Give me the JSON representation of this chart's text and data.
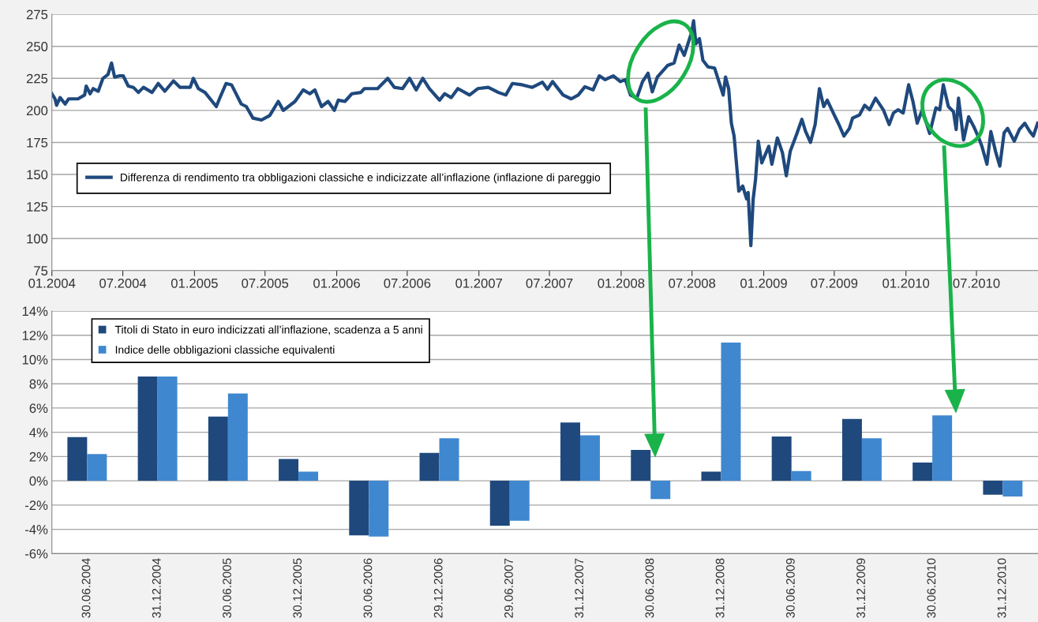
{
  "chart_data": [
    {
      "type": "line",
      "ylim": [
        75,
        275
      ],
      "yticks": [
        75,
        100,
        125,
        150,
        175,
        200,
        225,
        250,
        275
      ],
      "xlim": [
        "2004-01-01",
        "2010-12-06"
      ],
      "xticks": [
        {
          "value": "2004-01-01",
          "label": "01.2004"
        },
        {
          "value": "2004-07-01",
          "label": "07.2004"
        },
        {
          "value": "2005-01-01",
          "label": "01.2005"
        },
        {
          "value": "2005-07-01",
          "label": "07.2005"
        },
        {
          "value": "2006-01-01",
          "label": "01.2006"
        },
        {
          "value": "2006-07-01",
          "label": "07.2006"
        },
        {
          "value": "2007-01-01",
          "label": "01.2007"
        },
        {
          "value": "2007-07-01",
          "label": "07.2007"
        },
        {
          "value": "2008-01-01",
          "label": "01.2008"
        },
        {
          "value": "2008-07-01",
          "label": "07.2008"
        },
        {
          "value": "2009-01-01",
          "label": "01.2009"
        },
        {
          "value": "2009-07-01",
          "label": "07.2009"
        },
        {
          "value": "2010-01-01",
          "label": "01.2010"
        },
        {
          "value": "2010-07-01",
          "label": "07.2010"
        }
      ],
      "grid": "y",
      "legend": "left",
      "line_style": "solid",
      "marker": "none",
      "series": [
        {
          "name": "Differenza di rendimento tra obbligazioni classiche e indicizzate all’inflazione (inflazione di pareggio",
          "color": "#1f497d",
          "x": [
            "2004-01-01",
            "2004-01-09",
            "2004-01-13",
            "2004-01-22",
            "2004-02-04",
            "2004-02-13",
            "2004-03-08",
            "2004-03-25",
            "2004-03-29",
            "2004-04-08",
            "2004-04-16",
            "2004-04-29",
            "2004-05-11",
            "2004-05-24",
            "2004-06-02",
            "2004-06-10",
            "2004-06-23",
            "2004-07-02",
            "2004-07-15",
            "2004-07-28",
            "2004-08-10",
            "2004-08-23",
            "2004-09-14",
            "2004-09-30",
            "2004-10-17",
            "2004-11-08",
            "2004-11-25",
            "2004-12-21",
            "2004-12-29",
            "2005-01-11",
            "2005-01-28",
            "2005-02-26",
            "2005-03-06",
            "2005-03-23",
            "2005-04-06",
            "2005-05-01",
            "2005-05-14",
            "2005-05-31",
            "2005-06-22",
            "2005-07-13",
            "2005-08-04",
            "2005-08-17",
            "2005-09-16",
            "2005-10-07",
            "2005-10-24",
            "2005-11-06",
            "2005-11-23",
            "2005-12-10",
            "2005-12-26",
            "2006-01-05",
            "2006-01-22",
            "2006-02-09",
            "2006-03-04",
            "2006-03-13",
            "2006-04-16",
            "2006-05-12",
            "2006-05-29",
            "2006-06-19",
            "2006-07-07",
            "2006-07-24",
            "2006-08-10",
            "2006-08-27",
            "2006-09-22",
            "2006-10-05",
            "2006-10-22",
            "2006-11-08",
            "2006-12-08",
            "2006-12-29",
            "2007-01-25",
            "2007-02-20",
            "2007-03-11",
            "2007-03-28",
            "2007-04-22",
            "2007-05-18",
            "2007-06-13",
            "2007-06-26",
            "2007-07-09",
            "2007-08-05",
            "2007-08-26",
            "2007-09-13",
            "2007-09-30",
            "2007-10-21",
            "2007-11-06",
            "2007-11-21",
            "2007-12-12",
            "2007-12-30",
            "2008-01-12",
            "2008-01-25",
            "2008-02-10",
            "2008-02-25",
            "2008-03-10",
            "2008-03-21",
            "2008-04-03",
            "2008-04-29",
            "2008-05-16",
            "2008-05-29",
            "2008-06-11",
            "2008-06-22",
            "2008-06-30",
            "2008-07-05",
            "2008-07-11",
            "2008-07-20",
            "2008-07-29",
            "2008-08-11",
            "2008-08-28",
            "2008-09-08",
            "2008-09-19",
            "2008-09-25",
            "2008-10-03",
            "2008-10-10",
            "2008-10-17",
            "2008-10-23",
            "2008-10-29",
            "2008-11-08",
            "2008-11-18",
            "2008-11-22",
            "2008-11-29",
            "2008-12-05",
            "2008-12-11",
            "2008-12-18",
            "2008-12-27",
            "2009-01-14",
            "2009-01-22",
            "2009-02-05",
            "2009-02-18",
            "2009-02-28",
            "2009-03-10",
            "2009-03-26",
            "2009-04-09",
            "2009-04-18",
            "2009-05-01",
            "2009-05-13",
            "2009-05-24",
            "2009-06-04",
            "2009-06-13",
            "2009-07-01",
            "2009-07-13",
            "2009-07-26",
            "2009-08-09",
            "2009-08-17",
            "2009-09-04",
            "2009-09-17",
            "2009-09-30",
            "2009-10-15",
            "2009-11-04",
            "2009-11-19",
            "2009-11-30",
            "2009-12-12",
            "2009-12-25",
            "2010-01-08",
            "2010-01-19",
            "2010-01-30",
            "2010-02-12",
            "2010-03-03",
            "2010-03-19",
            "2010-03-29",
            "2010-04-07",
            "2010-04-20",
            "2010-05-03",
            "2010-05-10",
            "2010-05-16",
            "2010-05-29",
            "2010-06-11",
            "2010-06-24",
            "2010-07-07",
            "2010-07-15",
            "2010-07-28",
            "2010-08-07",
            "2010-08-19",
            "2010-08-30",
            "2010-09-10",
            "2010-09-19",
            "2010-10-06",
            "2010-10-19",
            "2010-11-02",
            "2010-11-15",
            "2010-11-24",
            "2010-12-05"
          ],
          "values": [
            213,
            209,
            204,
            210,
            205,
            209,
            209,
            212,
            219,
            213,
            217,
            215,
            225,
            228,
            237,
            226,
            227,
            227,
            219,
            218,
            214,
            218,
            214,
            221,
            215,
            223,
            218,
            218,
            225,
            217,
            214,
            203,
            209,
            221,
            220,
            205,
            203,
            194,
            192.5,
            196,
            207,
            200,
            207,
            216,
            213,
            216,
            203,
            207,
            200,
            208,
            207,
            213,
            214,
            217,
            217,
            225,
            218,
            217,
            225,
            216,
            225,
            217,
            208,
            213,
            210,
            217,
            212,
            217,
            218,
            214,
            212,
            221,
            220,
            218,
            222,
            216.5,
            222.5,
            212,
            209,
            212,
            218.5,
            216,
            227,
            224,
            227,
            222.5,
            224,
            212,
            209.5,
            222.5,
            229,
            214.5,
            226,
            235,
            237,
            251,
            243,
            253.5,
            261,
            270,
            252,
            256,
            239,
            234,
            233,
            222.5,
            212,
            226,
            217,
            190,
            180,
            159,
            137,
            141,
            131,
            136,
            94.5,
            131,
            146,
            176,
            159,
            172,
            158,
            178.5,
            167,
            149,
            168,
            181,
            193,
            184,
            175,
            189,
            217,
            203,
            208,
            196.5,
            189,
            180,
            186,
            194,
            196.5,
            204,
            200.5,
            209.5,
            200.5,
            189,
            198,
            200.5,
            198,
            220,
            207,
            190,
            200.5,
            182,
            202,
            200.5,
            220,
            203,
            199,
            185,
            209.5,
            177,
            195,
            187.5,
            178.5,
            172,
            158,
            183.5,
            168,
            156.5,
            182.5,
            186,
            176,
            185,
            190,
            183.5,
            180,
            190
          ]
        }
      ]
    },
    {
      "type": "bar",
      "ylim": [
        -6,
        14
      ],
      "yticks": [
        {
          "value": -6,
          "label": "-6%"
        },
        {
          "value": -4,
          "label": "-4%"
        },
        {
          "value": -2,
          "label": "-2%"
        },
        {
          "value": 0,
          "label": "0%"
        },
        {
          "value": 2,
          "label": "2%"
        },
        {
          "value": 4,
          "label": "4%"
        },
        {
          "value": 6,
          "label": "6%"
        },
        {
          "value": 8,
          "label": "8%"
        },
        {
          "value": 10,
          "label": "10%"
        },
        {
          "value": 12,
          "label": "12%"
        },
        {
          "value": 14,
          "label": "14%"
        }
      ],
      "grid": "y",
      "legend": "top left",
      "categories": [
        "30.06.2004",
        "31.12.2004",
        "30.06.2005",
        "30.12.2005",
        "30.06.2006",
        "29.12.2006",
        "29.06.2007",
        "31.12.2007",
        "30.06.2008",
        "31.12.2008",
        "30.06.2009",
        "31.12.2009",
        "30.06.2010",
        "31.12.2010"
      ],
      "series": [
        {
          "name": "Titoli di Stato in euro indicizzati all’inflazione, scadenza a 5 anni",
          "color": "#1f497d",
          "values": [
            3.6,
            8.6,
            5.3,
            1.8,
            -4.5,
            2.3,
            -3.7,
            4.8,
            2.55,
            0.75,
            3.65,
            5.1,
            1.5,
            -1.15
          ]
        },
        {
          "name": "Indice delle obbligazioni classiche equivalenti",
          "color": "#3f88d0",
          "values": [
            2.2,
            8.6,
            7.2,
            0.75,
            -4.6,
            3.5,
            -3.3,
            3.75,
            -1.5,
            11.4,
            0.8,
            3.5,
            5.4,
            -1.3
          ]
        }
      ]
    }
  ]
}
